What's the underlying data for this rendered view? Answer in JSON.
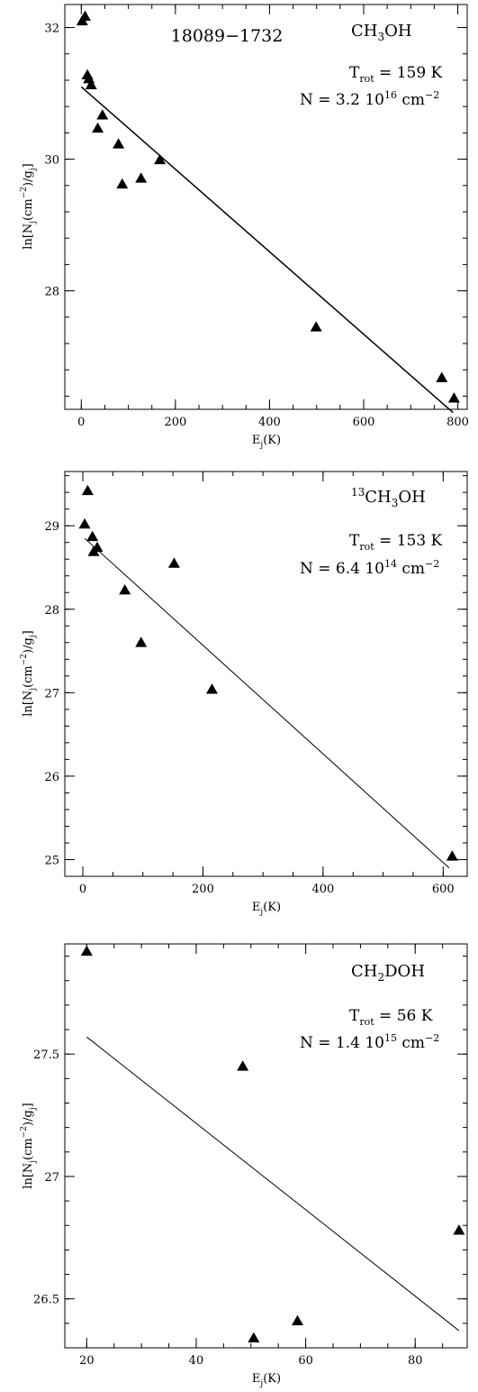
{
  "chart_data": [
    {
      "type": "scatter",
      "title": "18089−1732",
      "molecule": "CH₃OH",
      "trot": "T_rot = 159 K",
      "column_density": "N = 3.2 10^16 cm^-2",
      "xlabel": "E_j(K)",
      "ylabel": "ln[N_j(cm^-2)/g_j]",
      "xlim": [
        -35,
        820
      ],
      "ylim": [
        26.2,
        32.35
      ],
      "xticks": [
        0,
        200,
        400,
        600,
        800
      ],
      "yticks": [
        28,
        30,
        32
      ],
      "points": [
        {
          "x": 2,
          "y": 32.1
        },
        {
          "x": 8,
          "y": 32.17
        },
        {
          "x": 13,
          "y": 31.28
        },
        {
          "x": 16,
          "y": 31.22
        },
        {
          "x": 21,
          "y": 31.13
        },
        {
          "x": 35,
          "y": 30.47
        },
        {
          "x": 45,
          "y": 30.67
        },
        {
          "x": 79,
          "y": 30.23
        },
        {
          "x": 87,
          "y": 29.62
        },
        {
          "x": 127,
          "y": 29.71
        },
        {
          "x": 167,
          "y": 29.99
        },
        {
          "x": 499,
          "y": 27.45
        },
        {
          "x": 766,
          "y": 26.68
        },
        {
          "x": 792,
          "y": 26.37
        }
      ],
      "fit": {
        "x": [
          0,
          790
        ],
        "y": [
          31.1,
          26.15
        ]
      }
    },
    {
      "type": "scatter",
      "molecule": "13CH3OH",
      "trot": "T_rot = 153 K",
      "column_density": "N = 6.4 10^14 cm^-2",
      "xlabel": "E_j(K)",
      "ylabel": "ln[N_j(cm^-2)/g_j]",
      "xlim": [
        -30,
        640
      ],
      "ylim": [
        24.8,
        29.65
      ],
      "xticks": [
        0,
        200,
        400,
        600
      ],
      "yticks": [
        25,
        26,
        27,
        28,
        29
      ],
      "points": [
        {
          "x": 3,
          "y": 29.02
        },
        {
          "x": 8,
          "y": 29.42
        },
        {
          "x": 16,
          "y": 28.87
        },
        {
          "x": 18,
          "y": 28.69
        },
        {
          "x": 24,
          "y": 28.74
        },
        {
          "x": 70,
          "y": 28.23
        },
        {
          "x": 97,
          "y": 27.6
        },
        {
          "x": 152,
          "y": 28.55
        },
        {
          "x": 215,
          "y": 27.04
        },
        {
          "x": 615,
          "y": 25.04
        }
      ],
      "fit": {
        "x": [
          3,
          610
        ],
        "y": [
          28.85,
          24.9
        ]
      }
    },
    {
      "type": "scatter",
      "molecule": "CH2DOH",
      "trot": "T_rot = 56 K",
      "column_density": "N = 1.4 10^15 cm^-2",
      "xlabel": "E_j(K)",
      "ylabel": "ln[N_j(cm^-2)/g_j]",
      "xlim": [
        16,
        89.5
      ],
      "ylim": [
        26.3,
        27.95
      ],
      "xticks": [
        20,
        40,
        60,
        80
      ],
      "ytick_values": [
        26.5,
        27,
        27.5
      ],
      "ytick_labels": [
        "26.5",
        "27",
        "27.5"
      ],
      "points": [
        {
          "x": 20,
          "y": 27.92
        },
        {
          "x": 48.5,
          "y": 27.45
        },
        {
          "x": 50.5,
          "y": 26.34
        },
        {
          "x": 58.5,
          "y": 26.41
        },
        {
          "x": 88,
          "y": 26.78
        }
      ],
      "fit": {
        "x": [
          20,
          88
        ],
        "y": [
          27.57,
          26.37
        ]
      }
    }
  ]
}
